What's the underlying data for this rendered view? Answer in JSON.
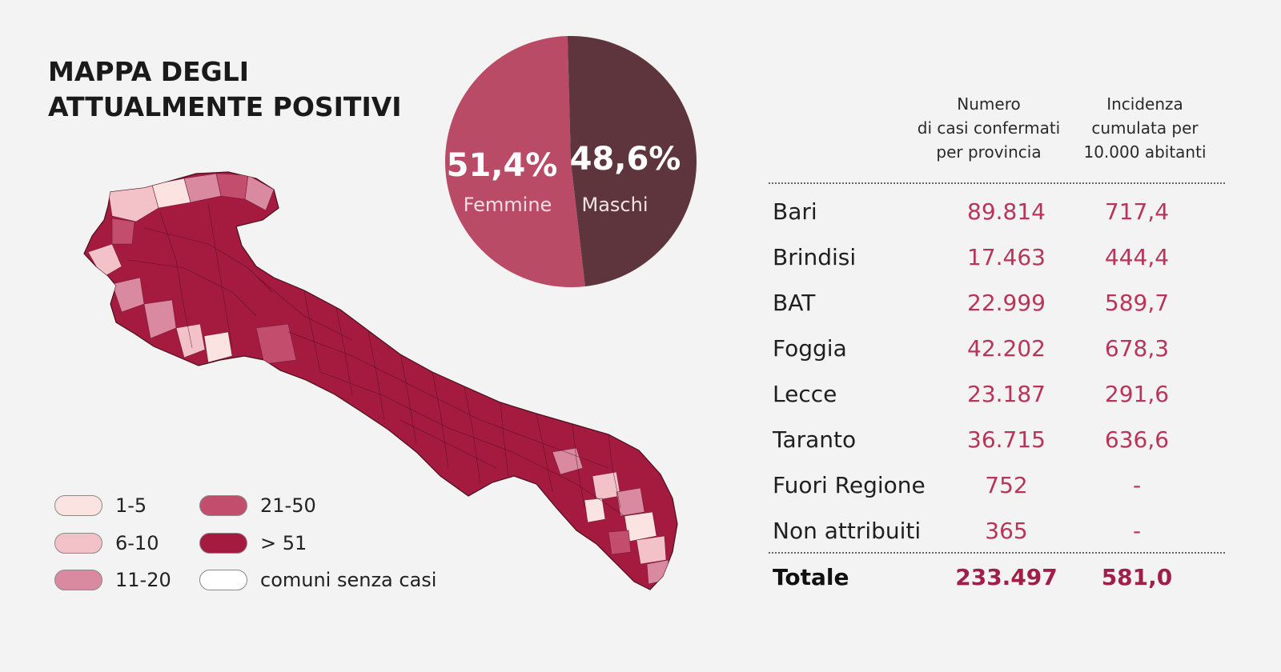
{
  "title": {
    "line1": "MAPPA DEGLI",
    "line2": "ATTUALMENTE POSITIVI"
  },
  "gender": {
    "female_pct": "51,4%",
    "female_label": "Femmine",
    "male_pct": "48,6%",
    "male_label": "Maschi",
    "female_share": 0.514,
    "female_color": "#b94b66",
    "male_color": "#5e353c"
  },
  "legend": [
    {
      "label": "1-5",
      "color": "#fbe3e1"
    },
    {
      "label": "6-10",
      "color": "#f3c2c8"
    },
    {
      "label": "11-20",
      "color": "#d98aa0"
    },
    {
      "label": "21-50",
      "color": "#c24d6c"
    },
    {
      "label": "> 51",
      "color": "#a51b40"
    },
    {
      "label": "comuni senza casi",
      "color": "#ffffff"
    }
  ],
  "table": {
    "col1_header": [
      "Numero",
      "di casi confermati",
      "per provincia"
    ],
    "col2_header": [
      "Incidenza",
      "cumulata per",
      "10.000 abitanti"
    ],
    "rows": [
      {
        "name": "Bari",
        "cases": "89.814",
        "incidence": "717,4"
      },
      {
        "name": "Brindisi",
        "cases": "17.463",
        "incidence": "444,4"
      },
      {
        "name": "BAT",
        "cases": "22.999",
        "incidence": "589,7"
      },
      {
        "name": "Foggia",
        "cases": "42.202",
        "incidence": "678,3"
      },
      {
        "name": "Lecce",
        "cases": "23.187",
        "incidence": "291,6"
      },
      {
        "name": "Taranto",
        "cases": "36.715",
        "incidence": "636,6"
      },
      {
        "name": "Fuori Regione",
        "cases": "752",
        "incidence": "-"
      },
      {
        "name": "Non attribuiti",
        "cases": "365",
        "incidence": "-"
      }
    ],
    "total": {
      "name": "Totale",
      "cases": "233.497",
      "incidence": "581,0"
    }
  },
  "colors": {
    "map_main": "#a51b40",
    "accent_text": "#b8355a"
  }
}
